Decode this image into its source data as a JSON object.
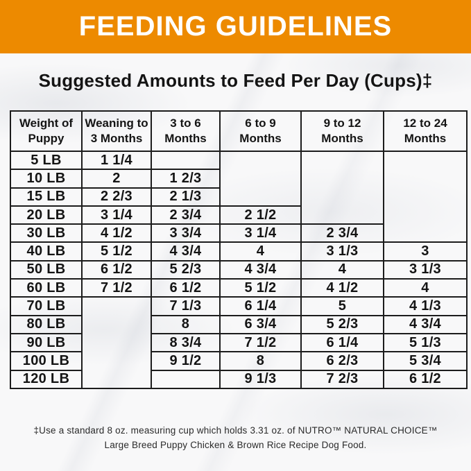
{
  "banner": {
    "title": "FEEDING GUIDELINES"
  },
  "subtitle": "Suggested Amounts to Feed Per Day (Cups)‡",
  "colors": {
    "banner_background": "#ED8A00",
    "banner_text": "#FFFFFF",
    "body_text": "#141414",
    "table_border": "#1C1C1C",
    "page_background": "#F8F8F9"
  },
  "table": {
    "columns": [
      "Weight of\nPuppy",
      "Weaning to\n3 Months",
      "3 to 6\nMonths",
      "6 to 9\nMonths",
      "9 to 12\nMonths",
      "12 to 24\nMonths"
    ],
    "rows": [
      {
        "weight": "5 LB",
        "cells": [
          "1 1/4",
          "",
          {
            "rowspan": 3,
            "text": ""
          },
          {
            "rowspan": 4,
            "text": ""
          },
          {
            "rowspan": 5,
            "text": ""
          }
        ]
      },
      {
        "weight": "10 LB",
        "cells": [
          "2",
          "1 2/3",
          null,
          null,
          null
        ]
      },
      {
        "weight": "15 LB",
        "cells": [
          "2 2/3",
          "2 1/3",
          null,
          null,
          null
        ]
      },
      {
        "weight": "20 LB",
        "cells": [
          "3 1/4",
          "2 3/4",
          "2 1/2",
          null,
          null
        ]
      },
      {
        "weight": "30 LB",
        "cells": [
          "4 1/2",
          "3 3/4",
          "3 1/4",
          "2 3/4",
          null
        ]
      },
      {
        "weight": "40 LB",
        "cells": [
          "5 1/2",
          "4 3/4",
          "4",
          "3 1/3",
          "3"
        ]
      },
      {
        "weight": "50 LB",
        "cells": [
          "6 1/2",
          "5 2/3",
          "4 3/4",
          "4",
          "3 1/3"
        ]
      },
      {
        "weight": "60 LB",
        "cells": [
          "7 1/2",
          "6 1/2",
          "5 1/2",
          "4 1/2",
          "4"
        ]
      },
      {
        "weight": "70 LB",
        "cells": [
          {
            "rowspan": 5,
            "text": ""
          },
          "7 1/3",
          "6 1/4",
          "5",
          "4 1/3"
        ]
      },
      {
        "weight": "80 LB",
        "cells": [
          null,
          "8",
          "6 3/4",
          "5 2/3",
          "4 3/4"
        ]
      },
      {
        "weight": "90 LB",
        "cells": [
          null,
          "8 3/4",
          "7 1/2",
          "6 1/4",
          "5 1/3"
        ]
      },
      {
        "weight": "100 LB",
        "cells": [
          null,
          "9 1/2",
          "8",
          "6 2/3",
          "5 3/4"
        ]
      },
      {
        "weight": "120 LB",
        "cells": [
          null,
          "",
          "9 1/3",
          "7 2/3",
          "6 1/2"
        ]
      }
    ]
  },
  "footnote": {
    "line1": "‡Use a standard 8 oz. measuring cup which holds 3.31 oz. of NUTRO™ NATURAL CHOICE™",
    "line2": "Large Breed Puppy Chicken & Brown Rice Recipe Dog Food."
  }
}
